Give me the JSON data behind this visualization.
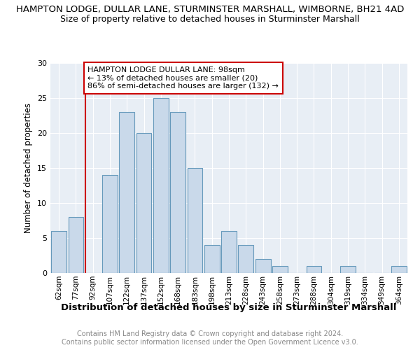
{
  "title": "HAMPTON LODGE, DULLAR LANE, STURMINSTER MARSHALL, WIMBORNE, BH21 4AD",
  "subtitle": "Size of property relative to detached houses in Sturminster Marshall",
  "xlabel": "Distribution of detached houses by size in Sturminster Marshall",
  "ylabel": "Number of detached properties",
  "footnote1": "Contains HM Land Registry data © Crown copyright and database right 2024.",
  "footnote2": "Contains public sector information licensed under the Open Government Licence v3.0.",
  "categories": [
    "62sqm",
    "77sqm",
    "92sqm",
    "107sqm",
    "122sqm",
    "137sqm",
    "152sqm",
    "168sqm",
    "183sqm",
    "198sqm",
    "213sqm",
    "228sqm",
    "243sqm",
    "258sqm",
    "273sqm",
    "288sqm",
    "304sqm",
    "319sqm",
    "334sqm",
    "349sqm",
    "364sqm"
  ],
  "values": [
    6,
    8,
    0,
    14,
    23,
    20,
    25,
    23,
    15,
    4,
    6,
    4,
    2,
    1,
    0,
    1,
    0,
    1,
    0,
    0,
    1
  ],
  "bar_color": "#c9d9ea",
  "bar_edge_color": "#6699bb",
  "ref_line_x": 2,
  "ref_line_color": "#cc0000",
  "annotation_text": "HAMPTON LODGE DULLAR LANE: 98sqm\n← 13% of detached houses are smaller (20)\n86% of semi-detached houses are larger (132) →",
  "annotation_box_color": "#ffffff",
  "annotation_box_edge": "#cc0000",
  "ylim": [
    0,
    30
  ],
  "yticks": [
    0,
    5,
    10,
    15,
    20,
    25,
    30
  ],
  "title_fontsize": 9.5,
  "subtitle_fontsize": 9,
  "xlabel_fontsize": 9.5,
  "ylabel_fontsize": 8.5,
  "annot_fontsize": 8,
  "footnote_fontsize": 7,
  "background_color": "#ffffff",
  "plot_bg_color": "#e8eef5"
}
